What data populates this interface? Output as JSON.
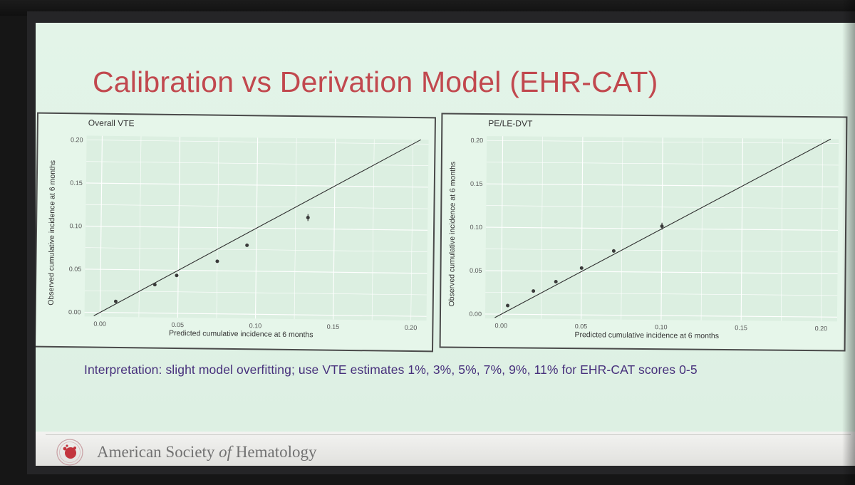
{
  "slide": {
    "title": "Calibration vs Derivation Model (EHR-CAT)",
    "interpretation": "Interpretation: slight model overfitting; use VTE estimates 1%, 3%, 5%, 7%, 9%, 11% for EHR-CAT scores 0-5"
  },
  "footer": {
    "org_pre": "American Society ",
    "org_of": "of",
    "org_post": " Hematology"
  },
  "colors": {
    "title": "#c1484e",
    "interpretation": "#47307c",
    "gridline": "#ffffff",
    "points": "#3a3a3a",
    "reference_line": "#2f2f2f"
  },
  "chart_data": [
    {
      "type": "scatter",
      "title": "Overall VTE",
      "xlabel": "Predicted cumulative incidence at 6 months",
      "ylabel": "Observed cumulative incidence at 6 months",
      "xlim": [
        -0.01,
        0.21
      ],
      "ylim": [
        -0.005,
        0.205
      ],
      "x_ticks": [
        "0.00",
        "0.05",
        "0.10",
        "0.15",
        "0.20"
      ],
      "y_ticks": [
        "0.00",
        "0.05",
        "0.10",
        "0.15",
        "0.20"
      ],
      "grid": true,
      "reference_line": "y = x",
      "points": [
        {
          "x": 0.01,
          "y": 0.013
        },
        {
          "x": 0.035,
          "y": 0.033
        },
        {
          "x": 0.049,
          "y": 0.044
        },
        {
          "x": 0.075,
          "y": 0.061
        },
        {
          "x": 0.094,
          "y": 0.08,
          "err": 0.002
        },
        {
          "x": 0.133,
          "y": 0.113,
          "err": 0.004
        }
      ]
    },
    {
      "type": "scatter",
      "title": "PE/LE-DVT",
      "xlabel": "Predicted cumulative incidence at 6 months",
      "ylabel": "Observed cumulative incidence at 6 months",
      "xlim": [
        -0.01,
        0.21
      ],
      "ylim": [
        -0.005,
        0.205
      ],
      "x_ticks": [
        "0.00",
        "0.05",
        "0.10",
        "0.15",
        "0.20"
      ],
      "y_ticks": [
        "0.00",
        "0.05",
        "0.10",
        "0.15",
        "0.20"
      ],
      "grid": true,
      "reference_line": "y = x",
      "points": [
        {
          "x": 0.004,
          "y": 0.01
        },
        {
          "x": 0.02,
          "y": 0.027
        },
        {
          "x": 0.034,
          "y": 0.038
        },
        {
          "x": 0.05,
          "y": 0.054
        },
        {
          "x": 0.07,
          "y": 0.074,
          "err": 0.002
        },
        {
          "x": 0.1,
          "y": 0.103,
          "err": 0.004
        }
      ]
    }
  ]
}
